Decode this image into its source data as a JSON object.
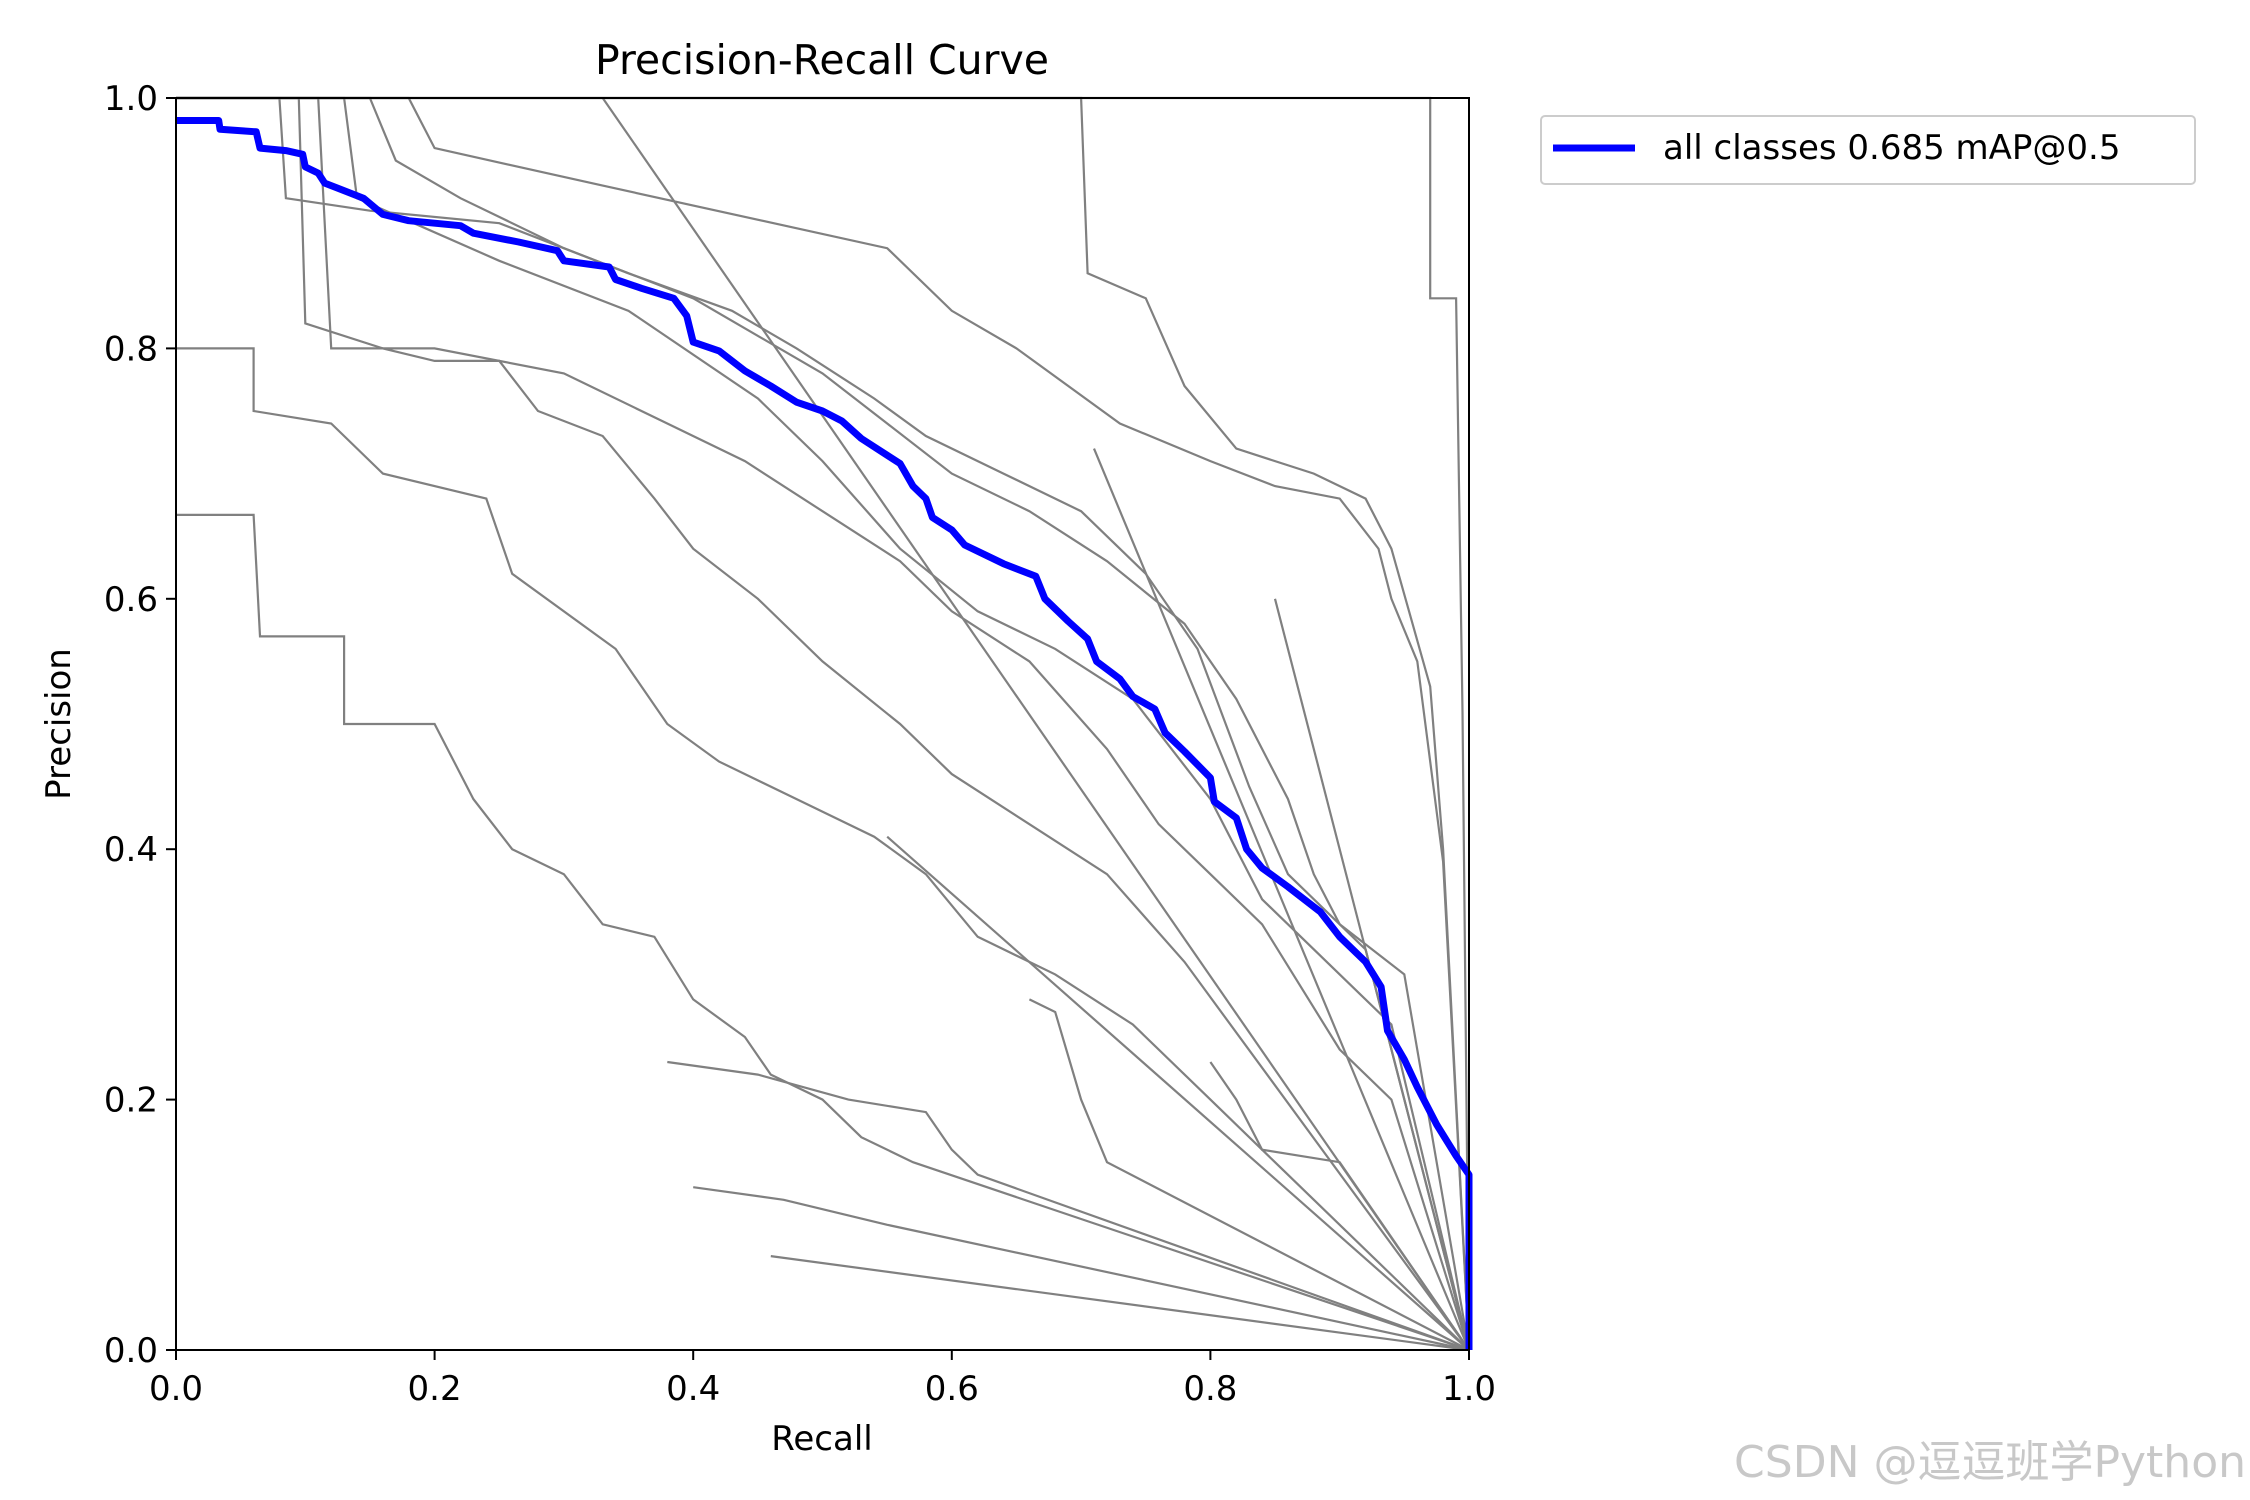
{
  "watermark": "CSDN @逗逗班学Python",
  "chart_data": {
    "type": "line",
    "title": "Precision-Recall Curve",
    "xlabel": "Recall",
    "ylabel": "Precision",
    "xlim": [
      0,
      1
    ],
    "ylim": [
      0,
      1
    ],
    "xticks": [
      "0.0",
      "0.2",
      "0.4",
      "0.6",
      "0.8",
      "1.0"
    ],
    "yticks": [
      "0.0",
      "0.2",
      "0.4",
      "0.6",
      "0.8",
      "1.0"
    ],
    "grid": false,
    "legend_position": "outside-top-right",
    "colors": {
      "main": "#0000ff",
      "class": "#808080"
    },
    "series": [
      {
        "name": "all classes 0.685 mAP@0.5",
        "color": "#0000ff",
        "points": [
          [
            0,
            0.982
          ],
          [
            0.033,
            0.982
          ],
          [
            0.034,
            0.975
          ],
          [
            0.062,
            0.973
          ],
          [
            0.065,
            0.96
          ],
          [
            0.085,
            0.958
          ],
          [
            0.098,
            0.955
          ],
          [
            0.1,
            0.945
          ],
          [
            0.11,
            0.94
          ],
          [
            0.115,
            0.932
          ],
          [
            0.125,
            0.928
          ],
          [
            0.145,
            0.92
          ],
          [
            0.16,
            0.907
          ],
          [
            0.18,
            0.902
          ],
          [
            0.22,
            0.898
          ],
          [
            0.23,
            0.892
          ],
          [
            0.265,
            0.885
          ],
          [
            0.295,
            0.878
          ],
          [
            0.3,
            0.87
          ],
          [
            0.335,
            0.865
          ],
          [
            0.34,
            0.855
          ],
          [
            0.36,
            0.848
          ],
          [
            0.385,
            0.84
          ],
          [
            0.395,
            0.826
          ],
          [
            0.4,
            0.805
          ],
          [
            0.42,
            0.798
          ],
          [
            0.44,
            0.782
          ],
          [
            0.46,
            0.77
          ],
          [
            0.48,
            0.757
          ],
          [
            0.5,
            0.75
          ],
          [
            0.515,
            0.742
          ],
          [
            0.53,
            0.728
          ],
          [
            0.545,
            0.718
          ],
          [
            0.56,
            0.708
          ],
          [
            0.57,
            0.69
          ],
          [
            0.58,
            0.68
          ],
          [
            0.585,
            0.665
          ],
          [
            0.6,
            0.655
          ],
          [
            0.61,
            0.643
          ],
          [
            0.64,
            0.628
          ],
          [
            0.665,
            0.618
          ],
          [
            0.672,
            0.6
          ],
          [
            0.69,
            0.582
          ],
          [
            0.705,
            0.568
          ],
          [
            0.712,
            0.55
          ],
          [
            0.73,
            0.536
          ],
          [
            0.74,
            0.522
          ],
          [
            0.757,
            0.512
          ],
          [
            0.765,
            0.493
          ],
          [
            0.78,
            0.478
          ],
          [
            0.8,
            0.457
          ],
          [
            0.803,
            0.438
          ],
          [
            0.82,
            0.425
          ],
          [
            0.828,
            0.4
          ],
          [
            0.84,
            0.385
          ],
          [
            0.86,
            0.37
          ],
          [
            0.885,
            0.35
          ],
          [
            0.9,
            0.33
          ],
          [
            0.92,
            0.31
          ],
          [
            0.932,
            0.29
          ],
          [
            0.937,
            0.255
          ],
          [
            0.95,
            0.232
          ],
          [
            0.96,
            0.21
          ],
          [
            0.975,
            0.18
          ],
          [
            0.99,
            0.155
          ],
          [
            1.0,
            0.14
          ],
          [
            1.0,
            0.0
          ]
        ]
      }
    ],
    "class_curves": [
      [
        [
          0,
          1.0
        ],
        [
          0.97,
          1.0
        ],
        [
          0.97,
          0.985
        ],
        [
          0.97,
          0.84
        ],
        [
          0.99,
          0.84
        ],
        [
          0.995,
          0.51
        ],
        [
          1.0,
          0.0
        ]
      ],
      [
        [
          0,
          1.0
        ],
        [
          0.7,
          1.0
        ],
        [
          0.705,
          0.86
        ],
        [
          0.75,
          0.84
        ],
        [
          0.78,
          0.77
        ],
        [
          0.82,
          0.72
        ],
        [
          0.88,
          0.7
        ],
        [
          0.92,
          0.68
        ],
        [
          0.94,
          0.64
        ],
        [
          0.97,
          0.53
        ],
        [
          0.98,
          0.4
        ],
        [
          1.0,
          0.0
        ]
      ],
      [
        [
          0,
          1.0
        ],
        [
          0.18,
          1.0
        ],
        [
          0.2,
          0.96
        ],
        [
          0.33,
          0.93
        ],
        [
          0.55,
          0.88
        ],
        [
          0.6,
          0.83
        ],
        [
          0.65,
          0.8
        ],
        [
          0.73,
          0.74
        ],
        [
          0.8,
          0.71
        ],
        [
          0.85,
          0.69
        ],
        [
          0.9,
          0.68
        ],
        [
          0.93,
          0.64
        ],
        [
          0.94,
          0.6
        ],
        [
          0.96,
          0.55
        ],
        [
          0.98,
          0.39
        ],
        [
          1.0,
          0.0
        ]
      ],
      [
        [
          0,
          1.0
        ],
        [
          0.15,
          1.0
        ],
        [
          0.17,
          0.95
        ],
        [
          0.22,
          0.92
        ],
        [
          0.3,
          0.88
        ],
        [
          0.4,
          0.84
        ],
        [
          0.5,
          0.78
        ],
        [
          0.55,
          0.74
        ],
        [
          0.6,
          0.7
        ],
        [
          0.66,
          0.67
        ],
        [
          0.72,
          0.63
        ],
        [
          0.78,
          0.58
        ],
        [
          0.82,
          0.52
        ],
        [
          0.86,
          0.44
        ],
        [
          0.88,
          0.38
        ],
        [
          0.9,
          0.34
        ],
        [
          0.95,
          0.3
        ],
        [
          1.0,
          0.0
        ]
      ],
      [
        [
          0,
          1.0
        ],
        [
          0.13,
          1.0
        ],
        [
          0.14,
          0.92
        ],
        [
          0.25,
          0.87
        ],
        [
          0.35,
          0.83
        ],
        [
          0.45,
          0.76
        ],
        [
          0.5,
          0.71
        ],
        [
          0.56,
          0.64
        ],
        [
          0.62,
          0.59
        ],
        [
          0.68,
          0.56
        ],
        [
          0.74,
          0.52
        ],
        [
          0.8,
          0.44
        ],
        [
          0.84,
          0.36
        ],
        [
          0.9,
          0.3
        ],
        [
          0.94,
          0.26
        ],
        [
          1.0,
          0.0
        ]
      ],
      [
        [
          0,
          1.0
        ],
        [
          0.11,
          1.0
        ],
        [
          0.12,
          0.8
        ],
        [
          0.2,
          0.8
        ],
        [
          0.3,
          0.78
        ],
        [
          0.38,
          0.74
        ],
        [
          0.44,
          0.71
        ],
        [
          0.5,
          0.67
        ],
        [
          0.56,
          0.63
        ],
        [
          0.6,
          0.59
        ],
        [
          0.66,
          0.55
        ],
        [
          0.72,
          0.48
        ],
        [
          0.76,
          0.42
        ],
        [
          0.8,
          0.38
        ],
        [
          0.84,
          0.34
        ],
        [
          0.9,
          0.24
        ],
        [
          0.94,
          0.2
        ],
        [
          1.0,
          0.0
        ]
      ],
      [
        [
          0,
          0.8
        ],
        [
          0.06,
          0.8
        ],
        [
          0.06,
          0.75
        ],
        [
          0.12,
          0.74
        ],
        [
          0.16,
          0.7
        ],
        [
          0.24,
          0.68
        ],
        [
          0.26,
          0.62
        ],
        [
          0.34,
          0.56
        ],
        [
          0.38,
          0.5
        ],
        [
          0.42,
          0.47
        ],
        [
          0.48,
          0.44
        ],
        [
          0.54,
          0.41
        ],
        [
          0.58,
          0.38
        ],
        [
          0.62,
          0.33
        ],
        [
          0.68,
          0.3
        ],
        [
          0.74,
          0.26
        ],
        [
          0.8,
          0.2
        ],
        [
          0.85,
          0.15
        ],
        [
          1.0,
          0.0
        ]
      ],
      [
        [
          0,
          0.667
        ],
        [
          0.06,
          0.667
        ],
        [
          0.065,
          0.57
        ],
        [
          0.13,
          0.57
        ],
        [
          0.13,
          0.5
        ],
        [
          0.2,
          0.5
        ],
        [
          0.23,
          0.44
        ],
        [
          0.26,
          0.4
        ],
        [
          0.3,
          0.38
        ],
        [
          0.33,
          0.34
        ],
        [
          0.37,
          0.33
        ],
        [
          0.4,
          0.28
        ],
        [
          0.44,
          0.25
        ],
        [
          0.46,
          0.22
        ],
        [
          0.5,
          0.2
        ],
        [
          0.53,
          0.17
        ],
        [
          0.57,
          0.15
        ],
        [
          1.0,
          0.0
        ]
      ],
      [
        [
          0,
          1.0
        ],
        [
          0.095,
          1.0
        ],
        [
          0.1,
          0.82
        ],
        [
          0.16,
          0.8
        ],
        [
          0.2,
          0.79
        ],
        [
          0.25,
          0.79
        ],
        [
          0.28,
          0.75
        ],
        [
          0.33,
          0.73
        ],
        [
          0.37,
          0.68
        ],
        [
          0.4,
          0.64
        ],
        [
          0.45,
          0.6
        ],
        [
          0.5,
          0.55
        ],
        [
          0.56,
          0.5
        ],
        [
          0.6,
          0.46
        ],
        [
          0.66,
          0.42
        ],
        [
          0.72,
          0.38
        ],
        [
          0.78,
          0.31
        ],
        [
          1.0,
          0.0
        ]
      ],
      [
        [
          0,
          1.0
        ],
        [
          0.08,
          1.0
        ],
        [
          0.085,
          0.92
        ],
        [
          0.15,
          0.91
        ],
        [
          0.25,
          0.9
        ],
        [
          0.35,
          0.86
        ],
        [
          0.43,
          0.83
        ],
        [
          0.48,
          0.8
        ],
        [
          0.54,
          0.76
        ],
        [
          0.58,
          0.73
        ],
        [
          0.64,
          0.7
        ],
        [
          0.7,
          0.67
        ],
        [
          0.75,
          0.62
        ],
        [
          0.79,
          0.56
        ],
        [
          0.83,
          0.45
        ],
        [
          0.86,
          0.38
        ],
        [
          0.92,
          0.32
        ],
        [
          1.0,
          0.0
        ]
      ],
      [
        [
          0.33,
          1.0
        ],
        [
          1.0,
          0.0
        ]
      ],
      [
        [
          0.46,
          0.075
        ],
        [
          1.0,
          0.0
        ]
      ],
      [
        [
          0.55,
          0.41
        ],
        [
          1.0,
          0.0
        ]
      ],
      [
        [
          0.71,
          0.72
        ],
        [
          1.0,
          0.0
        ]
      ],
      [
        [
          0.85,
          0.6
        ],
        [
          1.0,
          0.0
        ]
      ],
      [
        [
          0.38,
          0.23
        ],
        [
          0.45,
          0.22
        ],
        [
          0.52,
          0.2
        ],
        [
          0.58,
          0.19
        ],
        [
          0.6,
          0.16
        ],
        [
          0.62,
          0.14
        ],
        [
          1.0,
          0.0
        ]
      ],
      [
        [
          0.4,
          0.13
        ],
        [
          0.47,
          0.12
        ],
        [
          0.55,
          0.1
        ],
        [
          1.0,
          0.0
        ]
      ],
      [
        [
          0.66,
          0.28
        ],
        [
          0.68,
          0.27
        ],
        [
          0.7,
          0.2
        ],
        [
          0.72,
          0.15
        ],
        [
          1.0,
          0.0
        ]
      ],
      [
        [
          0.8,
          0.23
        ],
        [
          0.82,
          0.2
        ],
        [
          0.84,
          0.16
        ],
        [
          0.9,
          0.15
        ],
        [
          1.0,
          0.0
        ]
      ]
    ]
  }
}
